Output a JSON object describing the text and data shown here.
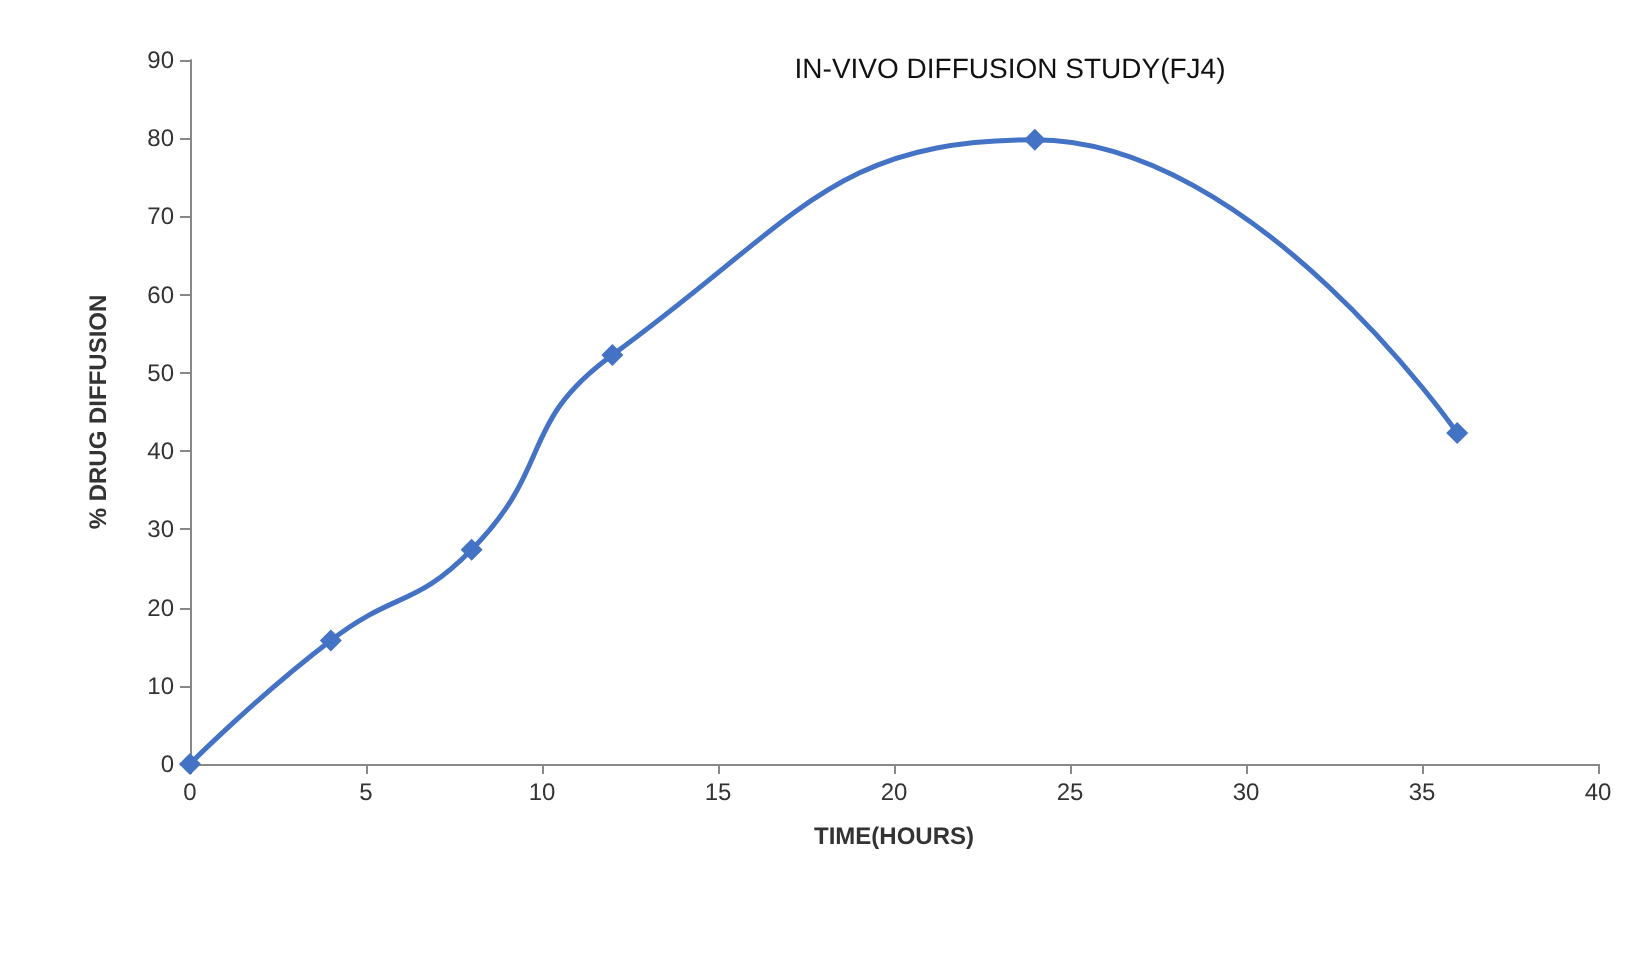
{
  "chart_data": {
    "type": "line",
    "title": "IN-VIVO DIFFUSION STUDY(FJ4)",
    "xlabel": "TIME(HOURS)",
    "ylabel": "% DRUG DIFFUSION",
    "x": [
      0,
      4,
      8,
      12,
      24,
      36
    ],
    "series": [
      {
        "color": "#4472c4",
        "values": [
          0,
          15.8,
          27.4,
          52.3,
          79.8,
          42.3
        ]
      }
    ],
    "xlim": [
      0,
      40
    ],
    "xticks": [
      0,
      5,
      10,
      15,
      20,
      25,
      30,
      35,
      40
    ],
    "ylim": [
      0,
      90
    ],
    "yticks": [
      0,
      10,
      20,
      30,
      40,
      50,
      60,
      70,
      80,
      90
    ],
    "marker": "diamond",
    "line_style": "solid"
  }
}
